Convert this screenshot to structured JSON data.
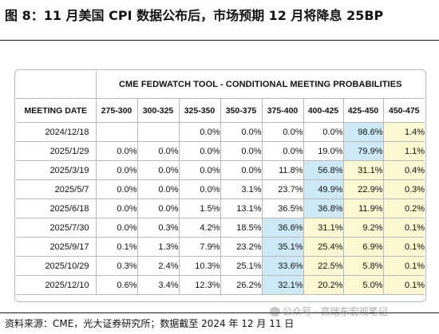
{
  "figure": {
    "title": "图 8：11 月美国 CPI 数据公布后，市场预期 12 月将降息 25BP",
    "source": "资料来源：CME，光大证券研究所；数据截至 2024 年 12 月 11 日",
    "watermark": "公众号 · 高瑞东宏观笔记"
  },
  "table": {
    "caption": "CME FEDWATCH TOOL - CONDITIONAL MEETING PROBABILITIES",
    "corner_header": "MEETING DATE",
    "columns": [
      "275-300",
      "300-325",
      "325-350",
      "350-375",
      "375-400",
      "400-425",
      "425-450",
      "450-475"
    ],
    "colors": {
      "blue": "#cde9f6",
      "yellow": "#fcf8d2",
      "none": "#ffffff"
    },
    "rows": [
      {
        "date": "2024/12/18",
        "values": [
          "",
          "",
          "0.0%",
          "0.0%",
          "0.0%",
          "0.0%",
          "98.6%",
          "1.4%"
        ],
        "fills": [
          "none",
          "none",
          "none",
          "none",
          "none",
          "none",
          "blue",
          "yellow"
        ]
      },
      {
        "date": "2025/1/29",
        "values": [
          "0.0%",
          "0.0%",
          "0.0%",
          "0.0%",
          "0.0%",
          "19.0%",
          "79.9%",
          "1.1%"
        ],
        "fills": [
          "none",
          "none",
          "none",
          "none",
          "none",
          "none",
          "blue",
          "yellow"
        ]
      },
      {
        "date": "2025/3/19",
        "values": [
          "0.0%",
          "0.0%",
          "0.0%",
          "0.0%",
          "11.8%",
          "56.8%",
          "31.1%",
          "0.4%"
        ],
        "fills": [
          "none",
          "none",
          "none",
          "none",
          "none",
          "blue",
          "yellow",
          "yellow"
        ]
      },
      {
        "date": "2025/5/7",
        "values": [
          "0.0%",
          "0.0%",
          "0.0%",
          "3.1%",
          "23.7%",
          "49.9%",
          "22.9%",
          "0.3%"
        ],
        "fills": [
          "none",
          "none",
          "none",
          "none",
          "none",
          "blue",
          "yellow",
          "yellow"
        ]
      },
      {
        "date": "2025/6/18",
        "values": [
          "0.0%",
          "0.0%",
          "1.5%",
          "13.1%",
          "36.5%",
          "36.8%",
          "11.9%",
          "0.2%"
        ],
        "fills": [
          "none",
          "none",
          "none",
          "none",
          "none",
          "blue",
          "yellow",
          "yellow"
        ]
      },
      {
        "date": "2025/7/30",
        "values": [
          "0.0%",
          "0.3%",
          "4.2%",
          "18.5%",
          "36.6%",
          "31.1%",
          "9.2%",
          "0.1%"
        ],
        "fills": [
          "none",
          "none",
          "none",
          "none",
          "blue",
          "yellow",
          "yellow",
          "yellow"
        ]
      },
      {
        "date": "2025/9/17",
        "values": [
          "0.1%",
          "1.3%",
          "7.9%",
          "23.2%",
          "35.1%",
          "25.4%",
          "6.9%",
          "0.1%"
        ],
        "fills": [
          "none",
          "none",
          "none",
          "none",
          "blue",
          "yellow",
          "yellow",
          "yellow"
        ]
      },
      {
        "date": "2025/10/29",
        "values": [
          "0.3%",
          "2.4%",
          "10.3%",
          "25.1%",
          "33.6%",
          "22.5%",
          "5.8%",
          "0.1%"
        ],
        "fills": [
          "none",
          "none",
          "none",
          "none",
          "blue",
          "yellow",
          "yellow",
          "yellow"
        ]
      },
      {
        "date": "2025/12/10",
        "values": [
          "0.6%",
          "3.4%",
          "12.3%",
          "26.2%",
          "32.1%",
          "20.2%",
          "5.0%",
          "0.1%"
        ],
        "fills": [
          "none",
          "none",
          "none",
          "none",
          "blue",
          "yellow",
          "yellow",
          "yellow"
        ]
      }
    ]
  }
}
